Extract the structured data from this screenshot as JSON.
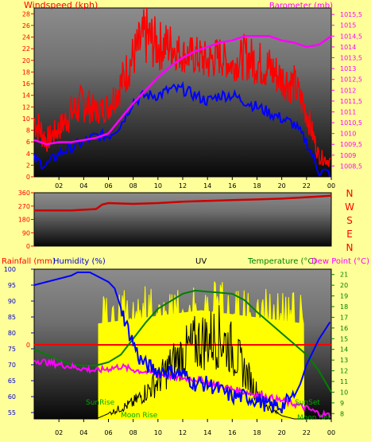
{
  "colors": {
    "background": "#ffff99",
    "wind": "#ff0000",
    "gust": "#ff0000",
    "avg_wind": "#0000ff",
    "barometer": "#ff00ff",
    "direction": "#cc0000",
    "humidity": "#0000ff",
    "temperature": "#008000",
    "dewpoint": "#ff00ff",
    "uv": "#ffff00",
    "solar": "#000000",
    "rain": "#ff0000",
    "sun_label": "#00aa00"
  },
  "x_ticks": [
    "02",
    "04",
    "06",
    "08",
    "10",
    "12",
    "14",
    "16",
    "18",
    "20",
    "22",
    "00"
  ],
  "chart_data": [
    {
      "type": "line",
      "title": "Windspeed (kph)",
      "subtitle": "",
      "ylabel_left": "Windspeed (kph)",
      "ylabel_right": "Barometer (mb)",
      "ylim_left": [
        0,
        29
      ],
      "ylim_right": [
        1008,
        1015.8
      ],
      "yticks_left": [
        "0",
        "2",
        "4",
        "6",
        "8",
        "10",
        "12",
        "14",
        "16",
        "18",
        "20",
        "22",
        "24",
        "26",
        "28"
      ],
      "yticks_right": [
        "1008,5",
        "1009",
        "1009,5",
        "1010",
        "1010,5",
        "1011",
        "1011,5",
        "1012",
        "1012,5",
        "1013",
        "1013,5",
        "1014",
        "1014,5",
        "1015",
        "1015,5"
      ],
      "series": [
        {
          "name": "Gust",
          "axis": "left",
          "x": [
            0,
            1,
            2,
            3,
            4,
            5,
            6,
            7,
            8,
            9,
            10,
            11,
            12,
            13,
            14,
            15,
            16,
            17,
            18,
            19,
            20,
            21,
            22,
            23,
            24
          ],
          "values": [
            11,
            7,
            9,
            12,
            14,
            12,
            13,
            17,
            22,
            26,
            24,
            24,
            22,
            22,
            21,
            22,
            20,
            22,
            21,
            20,
            18,
            17,
            12,
            4,
            3
          ]
        },
        {
          "name": "Avg",
          "axis": "left",
          "x": [
            0,
            1,
            2,
            3,
            4,
            5,
            6,
            7,
            8,
            9,
            10,
            11,
            12,
            13,
            14,
            15,
            16,
            17,
            18,
            19,
            20,
            21,
            22,
            23,
            24
          ],
          "values": [
            3,
            2,
            4,
            5,
            6,
            7,
            7,
            9,
            13,
            14,
            14,
            15,
            15,
            14,
            13,
            14,
            14,
            13,
            12,
            11,
            10,
            9,
            6,
            1,
            0.5
          ]
        },
        {
          "name": "Barometer",
          "axis": "right",
          "x": [
            0,
            1,
            2,
            3,
            4,
            5,
            6,
            7,
            8,
            9,
            10,
            11,
            12,
            13,
            14,
            15,
            16,
            17,
            18,
            19,
            20,
            21,
            22,
            23,
            24
          ],
          "values": [
            1009.7,
            1009.5,
            1009.6,
            1009.6,
            1009.7,
            1009.8,
            1010.0,
            1010.7,
            1011.4,
            1012.0,
            1012.6,
            1013.1,
            1013.5,
            1013.8,
            1014.0,
            1014.2,
            1014.3,
            1014.5,
            1014.5,
            1014.5,
            1014.3,
            1014.2,
            1014.0,
            1014.1,
            1014.5
          ]
        }
      ]
    },
    {
      "type": "line",
      "title": "",
      "ylabel_right": "N W S E N",
      "ylim": [
        0,
        360
      ],
      "yticks": [
        "0",
        "90",
        "180",
        "270",
        "360"
      ],
      "compass": [
        "N",
        "W",
        "S",
        "E",
        "N"
      ],
      "series": [
        {
          "name": "Direction",
          "x": [
            0,
            3,
            4,
            5,
            5.5,
            6,
            8,
            10,
            12,
            14,
            16,
            18,
            20,
            22,
            23,
            24
          ],
          "values": [
            240,
            240,
            245,
            250,
            280,
            290,
            285,
            290,
            300,
            305,
            310,
            315,
            320,
            330,
            335,
            340
          ]
        }
      ]
    },
    {
      "type": "line",
      "labels": [
        "Rainfall (mm)",
        "Humidity (%)",
        "UV",
        "Temperature (°C)",
        "Dew Point (°C)"
      ],
      "ylim_left": [
        53,
        100
      ],
      "yticks_left": [
        "55",
        "60",
        "65",
        "70",
        "75",
        "80",
        "85",
        "90",
        "95",
        "100"
      ],
      "rain_ylim": [
        -1,
        1
      ],
      "rain_ytick": "0",
      "ylim_right": [
        7.5,
        21.5
      ],
      "yticks_right": [
        "8",
        "9",
        "10",
        "11",
        "12",
        "13",
        "14",
        "15",
        "16",
        "17",
        "18",
        "19",
        "20",
        "21"
      ],
      "annotations": {
        "sunrise": "SunRise",
        "sunset": "SunSet",
        "moonrise": "Moon Rise",
        "moonset": "Moon Set"
      },
      "uv_band": {
        "start": 5.2,
        "end": 21.8
      },
      "series": [
        {
          "name": "Humidity",
          "axis": "left",
          "x": [
            0,
            1,
            2,
            3,
            3.5,
            4,
            4.5,
            5,
            5.5,
            6,
            6.5,
            7,
            7.5,
            8,
            8.5,
            9,
            10,
            11,
            12,
            13,
            14,
            15,
            16,
            17,
            18,
            19,
            20,
            21,
            21.5,
            22,
            22.5,
            23,
            23.5,
            24
          ],
          "values": [
            95,
            96,
            97,
            98,
            99,
            99,
            99,
            98,
            97,
            96,
            94,
            88,
            82,
            77,
            72,
            70,
            68,
            68,
            67,
            64,
            64,
            62,
            60,
            60,
            59,
            57,
            57,
            60,
            64,
            70,
            74,
            78,
            81,
            84
          ]
        },
        {
          "name": "Temperature",
          "axis": "right",
          "x": [
            0,
            1,
            2,
            3,
            4,
            5,
            6,
            7,
            8,
            9,
            10,
            11,
            12,
            13,
            14,
            15,
            16,
            17,
            18,
            19,
            20,
            21,
            22,
            23,
            24
          ],
          "values": [
            14,
            13.5,
            13,
            12.6,
            12.5,
            12.5,
            12.8,
            13.5,
            15,
            16.5,
            17.8,
            18.5,
            19.2,
            19.5,
            19.4,
            19.3,
            19.2,
            18.6,
            17.5,
            16.5,
            15.5,
            14.5,
            13.5,
            12,
            10
          ]
        },
        {
          "name": "Dew Point",
          "axis": "right",
          "x": [
            0,
            1,
            2,
            3,
            4,
            5,
            6,
            7,
            8,
            9,
            10,
            11,
            12,
            13,
            14,
            15,
            16,
            17,
            18,
            19,
            20,
            21,
            22,
            23,
            24
          ],
          "values": [
            13,
            12.8,
            12.6,
            12.4,
            12.2,
            12.0,
            12.2,
            12.4,
            12.1,
            11.9,
            11.7,
            11.5,
            11.3,
            11.2,
            11.0,
            10.6,
            10.3,
            10.0,
            9.8,
            9.5,
            9.2,
            8.9,
            8.5,
            8.0,
            7.8
          ]
        },
        {
          "name": "Solar",
          "axis": "right",
          "x": [
            0,
            5,
            6,
            7,
            8,
            9,
            10,
            11,
            12,
            13,
            14,
            15,
            16,
            17,
            18,
            19,
            20,
            21,
            22,
            24
          ],
          "values": [
            7.5,
            7.5,
            8,
            8.5,
            9,
            10,
            11,
            12.5,
            13.5,
            14.5,
            15,
            15.2,
            14,
            12,
            10,
            8.5,
            7.8,
            7.5,
            7.5,
            7.5
          ]
        }
      ]
    }
  ]
}
